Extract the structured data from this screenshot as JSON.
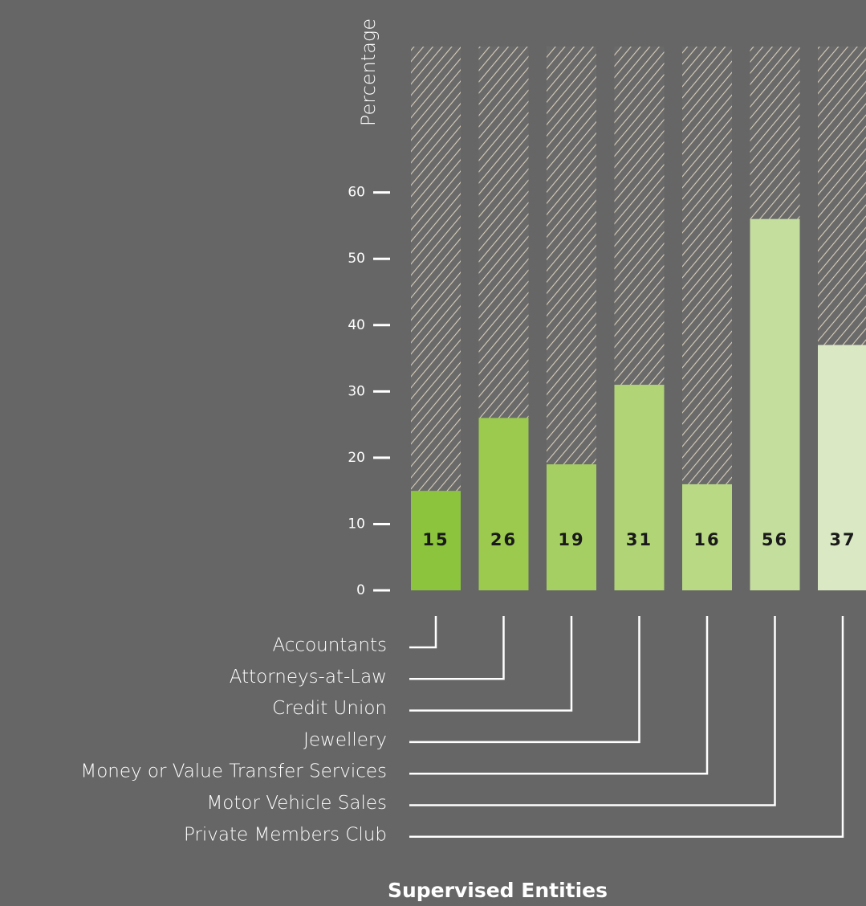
{
  "chart_data": {
    "type": "bar",
    "title": "Supervised Entities",
    "y_label": "Percentage",
    "categories": [
      "Accountants",
      "Attorneys-at-Law",
      "Credit Union",
      "Jewellery",
      "Money or Value Transfer Services",
      "Motor Vehicle Sales",
      "Private Members Club"
    ],
    "values": [
      15,
      26,
      19,
      31,
      16,
      56,
      37
    ],
    "colors": [
      "#8cc43e",
      "#9bca4f",
      "#a6cf63",
      "#b0d476",
      "#b9d985",
      "#c4de9e",
      "#dae9c3"
    ],
    "ylim": [
      0,
      82
    ],
    "yticks": [
      0,
      10,
      20,
      30,
      40,
      50,
      60
    ]
  }
}
